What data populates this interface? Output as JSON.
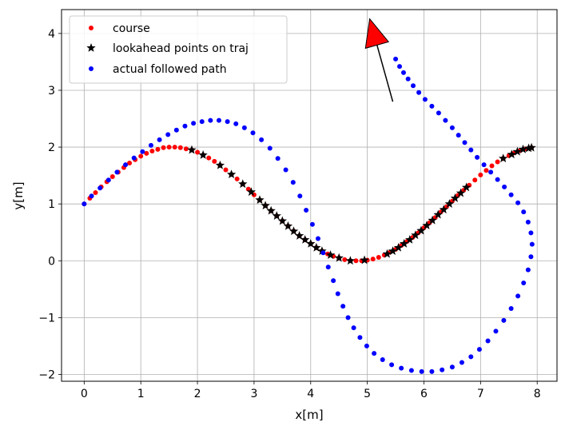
{
  "chart_data": {
    "type": "scatter",
    "xlabel": "x[m]",
    "ylabel": "y[m]",
    "xlim": [
      -0.4,
      8.35
    ],
    "ylim": [
      -2.12,
      4.42
    ],
    "xticks": [
      0,
      1,
      2,
      3,
      4,
      5,
      6,
      7,
      8
    ],
    "yticks": [
      -2,
      -1,
      0,
      1,
      2,
      3,
      4
    ],
    "ytick_labels": [
      "−2",
      "−1",
      "0",
      "1",
      "2",
      "3",
      "4"
    ],
    "grid": true,
    "legend_position": "top-left",
    "series": [
      {
        "name": "course",
        "marker": "dot",
        "color": "#ff0000",
        "x": [
          0.0,
          0.1,
          0.2,
          0.3,
          0.4,
          0.5,
          0.6,
          0.7,
          0.8,
          0.9,
          1.0,
          1.1,
          1.2,
          1.3,
          1.4,
          1.5,
          1.6,
          1.7,
          1.8,
          1.9,
          2.0,
          2.1,
          2.2,
          2.3,
          2.4,
          2.5,
          2.6,
          2.7,
          2.8,
          2.9,
          3.0,
          3.1,
          3.2,
          3.3,
          3.4,
          3.5,
          3.6,
          3.7,
          3.8,
          3.9,
          4.0,
          4.1,
          4.2,
          4.3,
          4.4,
          4.5,
          4.6,
          4.7,
          4.8,
          4.9,
          5.0,
          5.1,
          5.2,
          5.3,
          5.4,
          5.5,
          5.6,
          5.7,
          5.8,
          5.9,
          6.0,
          6.1,
          6.2,
          6.3,
          6.4,
          6.5,
          6.6,
          6.7,
          6.8,
          6.9,
          7.0,
          7.1,
          7.2,
          7.3,
          7.4,
          7.5,
          7.6,
          7.7,
          7.8,
          7.9
        ],
        "y": [
          1.0,
          1.1,
          1.2,
          1.3,
          1.39,
          1.48,
          1.56,
          1.64,
          1.72,
          1.78,
          1.84,
          1.89,
          1.93,
          1.96,
          1.99,
          2.0,
          2.0,
          1.99,
          1.97,
          1.95,
          1.91,
          1.86,
          1.81,
          1.75,
          1.68,
          1.6,
          1.52,
          1.44,
          1.35,
          1.26,
          1.16,
          1.07,
          0.97,
          0.88,
          0.79,
          0.7,
          0.61,
          0.52,
          0.44,
          0.37,
          0.3,
          0.23,
          0.17,
          0.12,
          0.08,
          0.05,
          0.02,
          0.0,
          0.0,
          0.0,
          0.01,
          0.03,
          0.06,
          0.1,
          0.15,
          0.2,
          0.27,
          0.34,
          0.41,
          0.49,
          0.58,
          0.67,
          0.76,
          0.86,
          0.95,
          1.05,
          1.15,
          1.24,
          1.33,
          1.42,
          1.51,
          1.59,
          1.67,
          1.74,
          1.8,
          1.85,
          1.9,
          1.94,
          1.97,
          1.99
        ]
      },
      {
        "name": "lookahead points on traj",
        "marker": "star",
        "color": "#000000",
        "x": [
          1.9,
          2.1,
          2.4,
          2.6,
          2.8,
          2.95,
          3.1,
          3.2,
          3.3,
          3.4,
          3.5,
          3.6,
          3.7,
          3.8,
          3.9,
          4.0,
          4.1,
          4.2,
          4.35,
          4.5,
          4.7,
          4.95,
          5.35,
          5.45,
          5.55,
          5.65,
          5.75,
          5.85,
          5.95,
          6.05,
          6.15,
          6.25,
          6.35,
          6.45,
          6.55,
          6.65,
          6.75,
          7.4,
          7.55,
          7.65,
          7.75,
          7.85,
          7.9
        ],
        "y": [
          1.95,
          1.86,
          1.68,
          1.52,
          1.35,
          1.21,
          1.07,
          0.97,
          0.88,
          0.79,
          0.7,
          0.61,
          0.52,
          0.44,
          0.37,
          0.3,
          0.23,
          0.17,
          0.1,
          0.05,
          0.0,
          0.01,
          0.12,
          0.17,
          0.23,
          0.3,
          0.37,
          0.45,
          0.53,
          0.62,
          0.71,
          0.81,
          0.9,
          1.0,
          1.1,
          1.19,
          1.29,
          1.8,
          1.87,
          1.92,
          1.96,
          1.98,
          1.99
        ]
      },
      {
        "name": "actual followed path",
        "marker": "dot",
        "color": "#0000ff",
        "x": [
          0.0,
          0.13,
          0.28,
          0.43,
          0.58,
          0.73,
          0.88,
          1.03,
          1.18,
          1.33,
          1.48,
          1.63,
          1.78,
          1.93,
          2.08,
          2.23,
          2.38,
          2.53,
          2.68,
          2.83,
          2.98,
          3.13,
          3.28,
          3.42,
          3.56,
          3.69,
          3.81,
          3.92,
          4.03,
          4.13,
          4.22,
          4.31,
          4.4,
          4.48,
          4.57,
          4.66,
          4.76,
          4.87,
          4.99,
          5.12,
          5.27,
          5.43,
          5.6,
          5.78,
          5.96,
          6.14,
          6.32,
          6.5,
          6.67,
          6.83,
          6.98,
          7.13,
          7.27,
          7.41,
          7.54,
          7.66,
          7.76,
          7.84,
          7.89,
          7.91,
          7.89,
          7.84,
          7.76,
          7.66,
          7.54,
          7.42,
          7.3,
          7.18,
          7.06,
          6.94,
          6.83,
          6.72,
          6.61,
          6.5,
          6.38,
          6.26,
          6.14,
          6.02,
          5.91,
          5.81,
          5.72,
          5.64,
          5.57,
          5.5
        ],
        "y": [
          1.0,
          1.14,
          1.28,
          1.42,
          1.56,
          1.69,
          1.81,
          1.92,
          2.03,
          2.13,
          2.22,
          2.3,
          2.37,
          2.42,
          2.45,
          2.47,
          2.47,
          2.45,
          2.41,
          2.34,
          2.25,
          2.13,
          1.98,
          1.8,
          1.6,
          1.38,
          1.14,
          0.89,
          0.64,
          0.39,
          0.14,
          -0.11,
          -0.35,
          -0.58,
          -0.8,
          -1.0,
          -1.18,
          -1.35,
          -1.5,
          -1.63,
          -1.74,
          -1.83,
          -1.89,
          -1.93,
          -1.95,
          -1.95,
          -1.92,
          -1.87,
          -1.79,
          -1.69,
          -1.56,
          -1.41,
          -1.24,
          -1.05,
          -0.84,
          -0.62,
          -0.39,
          -0.16,
          0.07,
          0.29,
          0.49,
          0.68,
          0.86,
          1.02,
          1.16,
          1.3,
          1.43,
          1.56,
          1.69,
          1.82,
          1.95,
          2.08,
          2.21,
          2.34,
          2.47,
          2.6,
          2.72,
          2.84,
          2.96,
          3.08,
          3.2,
          3.31,
          3.42,
          3.55
        ]
      }
    ],
    "annotation": {
      "type": "arrow",
      "color": "#ff0000",
      "edge_color": "#000000",
      "from": [
        5.45,
        2.8
      ],
      "to": [
        5.1,
        4.05
      ]
    }
  }
}
